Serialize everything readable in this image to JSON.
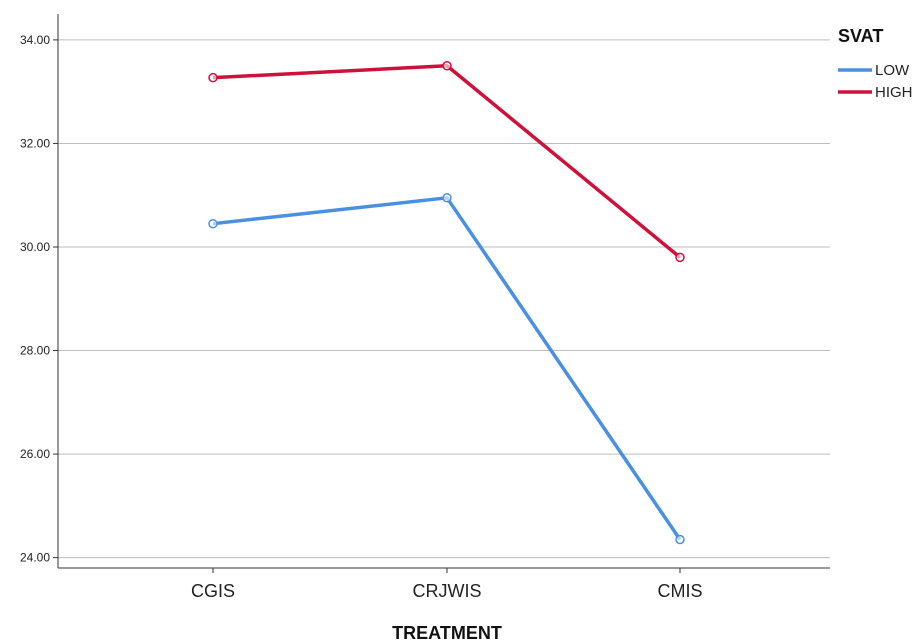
{
  "chart_data": {
    "type": "line",
    "title": "",
    "xlabel": "TREATMENT",
    "ylabel": "",
    "categories": [
      "CGIS",
      "CRJWIS",
      "CMIS"
    ],
    "yticks": [
      "24.00",
      "26.00",
      "28.00",
      "30.00",
      "32.00",
      "34.00"
    ],
    "ylim": [
      23.8,
      34.5
    ],
    "grid": true,
    "legend": {
      "title": "SVAT",
      "placement": "top-right"
    },
    "series": [
      {
        "name": "LOW",
        "color": "#4a90e2",
        "values": [
          30.45,
          30.95,
          24.35
        ]
      },
      {
        "name": "HIGH",
        "color": "#d0103a",
        "values": [
          33.27,
          33.5,
          29.8
        ]
      }
    ]
  }
}
